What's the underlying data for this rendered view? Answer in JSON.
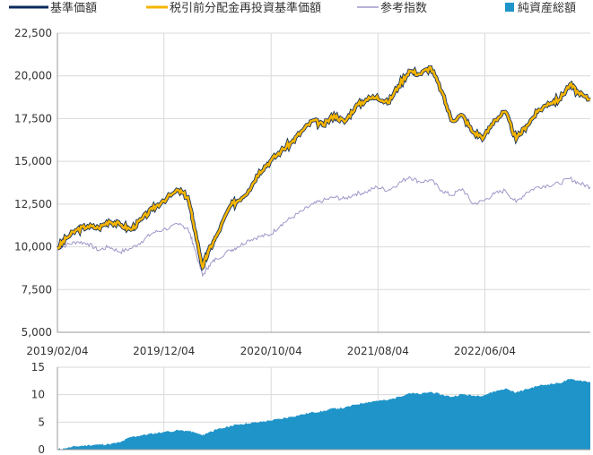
{
  "legend": [
    {
      "label": "基準価額",
      "color": "#0b2a5c",
      "kind": "line"
    },
    {
      "label": "税引前分配金再投資基準価額",
      "color": "#f5b400",
      "kind": "line"
    },
    {
      "label": "参考指数",
      "color": "#9d98c8",
      "kind": "line"
    },
    {
      "label": "純資産総額",
      "color": "#1f94c9",
      "kind": "square"
    }
  ],
  "chart_data": [
    {
      "type": "line",
      "title": "",
      "xlabel": "",
      "ylabel": "",
      "ylim": [
        5000,
        22500
      ],
      "yticks": [
        "22,500",
        "20,000",
        "17,500",
        "15,000",
        "12,500",
        "10,000",
        "7,500",
        "5,000"
      ],
      "yticks_values": [
        22500,
        20000,
        17500,
        15000,
        12500,
        10000,
        7500,
        5000
      ],
      "xticks": [
        "2019/02/04",
        "2019/12/04",
        "2020/10/04",
        "2021/08/04",
        "2022/06/04"
      ],
      "x_start": "2019/02/04",
      "x_end": "2023/03/31",
      "grid": true,
      "series": [
        {
          "name": "基準価額",
          "color": "#0b2a5c",
          "points": [
            [
              "2019/02/04",
              9900
            ],
            [
              "2019/03/01",
              10500
            ],
            [
              "2019/04/01",
              11000
            ],
            [
              "2019/05/01",
              11200
            ],
            [
              "2019/06/01",
              11100
            ],
            [
              "2019/07/01",
              11500
            ],
            [
              "2019/08/01",
              11300
            ],
            [
              "2019/09/01",
              11000
            ],
            [
              "2019/10/01",
              11600
            ],
            [
              "2019/11/01",
              12200
            ],
            [
              "2019/12/01",
              12700
            ],
            [
              "2020/01/15",
              13300
            ],
            [
              "2020/02/10",
              12900
            ],
            [
              "2020/02/25",
              11500
            ],
            [
              "2020/03/23",
              8800
            ],
            [
              "2020/04/10",
              9800
            ],
            [
              "2020/05/01",
              10600
            ],
            [
              "2020/06/10",
              12400
            ],
            [
              "2020/07/01",
              12700
            ],
            [
              "2020/08/01",
              13300
            ],
            [
              "2020/09/01",
              14400
            ],
            [
              "2020/10/01",
              15000
            ],
            [
              "2020/11/01",
              15600
            ],
            [
              "2020/12/01",
              16100
            ],
            [
              "2021/01/01",
              16800
            ],
            [
              "2021/02/01",
              17400
            ],
            [
              "2021/03/01",
              17100
            ],
            [
              "2021/04/01",
              17700
            ],
            [
              "2021/05/01",
              17300
            ],
            [
              "2021/06/01",
              18200
            ],
            [
              "2021/07/01",
              18600
            ],
            [
              "2021/08/01",
              18800
            ],
            [
              "2021/09/01",
              18400
            ],
            [
              "2021/10/01",
              19400
            ],
            [
              "2021/11/01",
              20300
            ],
            [
              "2021/12/01",
              20100
            ],
            [
              "2022/01/01",
              20500
            ],
            [
              "2022/02/01",
              19100
            ],
            [
              "2022/03/01",
              17400
            ],
            [
              "2022/04/01",
              17700
            ],
            [
              "2022/05/01",
              16700
            ],
            [
              "2022/06/01",
              16400
            ],
            [
              "2022/07/01",
              17400
            ],
            [
              "2022/08/01",
              17900
            ],
            [
              "2022/09/01",
              16300
            ],
            [
              "2022/10/01",
              17100
            ],
            [
              "2022/11/01",
              17900
            ],
            [
              "2022/12/01",
              18400
            ],
            [
              "2023/01/01",
              18600
            ],
            [
              "2023/02/01",
              19500
            ],
            [
              "2023/03/01",
              18900
            ],
            [
              "2023/03/31",
              18600
            ]
          ]
        },
        {
          "name": "税引前分配金再投資基準価額",
          "color": "#f5b400",
          "points": [
            [
              "2019/02/04",
              9900
            ],
            [
              "2019/03/01",
              10500
            ],
            [
              "2019/04/01",
              11000
            ],
            [
              "2019/05/01",
              11200
            ],
            [
              "2019/06/01",
              11100
            ],
            [
              "2019/07/01",
              11500
            ],
            [
              "2019/08/01",
              11300
            ],
            [
              "2019/09/01",
              11000
            ],
            [
              "2019/10/01",
              11600
            ],
            [
              "2019/11/01",
              12200
            ],
            [
              "2019/12/01",
              12700
            ],
            [
              "2020/01/15",
              13300
            ],
            [
              "2020/02/10",
              12900
            ],
            [
              "2020/02/25",
              11500
            ],
            [
              "2020/03/23",
              8800
            ],
            [
              "2020/04/10",
              9800
            ],
            [
              "2020/05/01",
              10600
            ],
            [
              "2020/06/10",
              12400
            ],
            [
              "2020/07/01",
              12700
            ],
            [
              "2020/08/01",
              13300
            ],
            [
              "2020/09/01",
              14400
            ],
            [
              "2020/10/01",
              15000
            ],
            [
              "2020/11/01",
              15600
            ],
            [
              "2020/12/01",
              16100
            ],
            [
              "2021/01/01",
              16800
            ],
            [
              "2021/02/01",
              17400
            ],
            [
              "2021/03/01",
              17100
            ],
            [
              "2021/04/01",
              17700
            ],
            [
              "2021/05/01",
              17300
            ],
            [
              "2021/06/01",
              18200
            ],
            [
              "2021/07/01",
              18600
            ],
            [
              "2021/08/01",
              18800
            ],
            [
              "2021/09/01",
              18400
            ],
            [
              "2021/10/01",
              19400
            ],
            [
              "2021/11/01",
              20300
            ],
            [
              "2021/12/01",
              20100
            ],
            [
              "2022/01/01",
              20500
            ],
            [
              "2022/02/01",
              19100
            ],
            [
              "2022/03/01",
              17400
            ],
            [
              "2022/04/01",
              17700
            ],
            [
              "2022/05/01",
              16700
            ],
            [
              "2022/06/01",
              16400
            ],
            [
              "2022/07/01",
              17400
            ],
            [
              "2022/08/01",
              17900
            ],
            [
              "2022/09/01",
              16300
            ],
            [
              "2022/10/01",
              17100
            ],
            [
              "2022/11/01",
              17900
            ],
            [
              "2022/12/01",
              18400
            ],
            [
              "2023/01/01",
              18600
            ],
            [
              "2023/02/01",
              19500
            ],
            [
              "2023/03/01",
              18900
            ],
            [
              "2023/03/31",
              18600
            ]
          ]
        },
        {
          "name": "参考指数",
          "color": "#9d98c8",
          "points": [
            [
              "2019/02/04",
              9900
            ],
            [
              "2019/03/01",
              10100
            ],
            [
              "2019/04/01",
              10300
            ],
            [
              "2019/05/01",
              10200
            ],
            [
              "2019/06/01",
              9800
            ],
            [
              "2019/07/01",
              10000
            ],
            [
              "2019/08/01",
              9700
            ],
            [
              "2019/09/01",
              9900
            ],
            [
              "2019/10/01",
              10300
            ],
            [
              "2019/11/01",
              10800
            ],
            [
              "2019/12/01",
              11000
            ],
            [
              "2020/01/15",
              11300
            ],
            [
              "2020/02/10",
              11100
            ],
            [
              "2020/02/25",
              10200
            ],
            [
              "2020/03/23",
              8300
            ],
            [
              "2020/04/10",
              8900
            ],
            [
              "2020/05/01",
              9300
            ],
            [
              "2020/06/10",
              9800
            ],
            [
              "2020/07/01",
              10000
            ],
            [
              "2020/08/01",
              10400
            ],
            [
              "2020/09/01",
              10600
            ],
            [
              "2020/10/01",
              10700
            ],
            [
              "2020/11/01",
              11300
            ],
            [
              "2020/12/01",
              11700
            ],
            [
              "2021/01/01",
              12100
            ],
            [
              "2021/02/01",
              12500
            ],
            [
              "2021/03/01",
              12700
            ],
            [
              "2021/04/01",
              12900
            ],
            [
              "2021/05/01",
              12800
            ],
            [
              "2021/06/01",
              13100
            ],
            [
              "2021/07/01",
              13200
            ],
            [
              "2021/08/01",
              13500
            ],
            [
              "2021/09/01",
              13300
            ],
            [
              "2021/10/01",
              13700
            ],
            [
              "2021/11/01",
              14100
            ],
            [
              "2021/12/01",
              13800
            ],
            [
              "2022/01/01",
              13900
            ],
            [
              "2022/02/01",
              13300
            ],
            [
              "2022/03/01",
              13000
            ],
            [
              "2022/04/01",
              13400
            ],
            [
              "2022/05/01",
              12500
            ],
            [
              "2022/06/01",
              12700
            ],
            [
              "2022/07/01",
              13100
            ],
            [
              "2022/08/01",
              13300
            ],
            [
              "2022/09/01",
              12600
            ],
            [
              "2022/10/01",
              13200
            ],
            [
              "2022/11/01",
              13500
            ],
            [
              "2022/12/01",
              13600
            ],
            [
              "2023/01/01",
              13700
            ],
            [
              "2023/02/01",
              14000
            ],
            [
              "2023/03/01",
              13700
            ],
            [
              "2023/03/31",
              13500
            ]
          ]
        }
      ]
    },
    {
      "type": "area",
      "title": "",
      "xlabel": "",
      "ylabel": "",
      "ylim": [
        0,
        15
      ],
      "yticks": [
        "15",
        "10",
        "5",
        "0"
      ],
      "yticks_values": [
        15,
        10,
        5,
        0
      ],
      "x_start": "2019/02/04",
      "x_end": "2023/03/31",
      "grid": true,
      "series": [
        {
          "name": "純資産総額",
          "color": "#1f94c9",
          "points": [
            [
              "2019/02/04",
              0.05
            ],
            [
              "2019/03/01",
              0.3
            ],
            [
              "2019/04/01",
              0.6
            ],
            [
              "2019/05/01",
              0.8
            ],
            [
              "2019/06/01",
              0.9
            ],
            [
              "2019/07/01",
              1.0
            ],
            [
              "2019/08/01",
              1.3
            ],
            [
              "2019/09/01",
              2.3
            ],
            [
              "2019/10/01",
              2.6
            ],
            [
              "2019/11/01",
              2.9
            ],
            [
              "2019/12/01",
              3.2
            ],
            [
              "2020/01/15",
              3.5
            ],
            [
              "2020/02/10",
              3.4
            ],
            [
              "2020/02/25",
              3.2
            ],
            [
              "2020/03/23",
              2.6
            ],
            [
              "2020/04/10",
              3.2
            ],
            [
              "2020/05/01",
              3.6
            ],
            [
              "2020/06/10",
              4.3
            ],
            [
              "2020/07/01",
              4.6
            ],
            [
              "2020/08/01",
              4.8
            ],
            [
              "2020/09/01",
              5.0
            ],
            [
              "2020/10/01",
              5.3
            ],
            [
              "2020/11/01",
              5.6
            ],
            [
              "2020/12/01",
              6.0
            ],
            [
              "2021/01/01",
              6.4
            ],
            [
              "2021/02/01",
              6.8
            ],
            [
              "2021/03/01",
              7.0
            ],
            [
              "2021/04/01",
              7.5
            ],
            [
              "2021/05/01",
              7.6
            ],
            [
              "2021/06/01",
              8.2
            ],
            [
              "2021/07/01",
              8.6
            ],
            [
              "2021/08/01",
              8.9
            ],
            [
              "2021/09/01",
              9.0
            ],
            [
              "2021/10/01",
              9.6
            ],
            [
              "2021/11/01",
              10.3
            ],
            [
              "2021/12/01",
              10.1
            ],
            [
              "2022/01/01",
              10.5
            ],
            [
              "2022/02/01",
              10.0
            ],
            [
              "2022/03/01",
              9.6
            ],
            [
              "2022/04/01",
              10.1
            ],
            [
              "2022/05/01",
              9.8
            ],
            [
              "2022/06/01",
              9.9
            ],
            [
              "2022/07/01",
              10.6
            ],
            [
              "2022/08/01",
              11.1
            ],
            [
              "2022/09/01",
              10.4
            ],
            [
              "2022/10/01",
              11.0
            ],
            [
              "2022/11/01",
              11.6
            ],
            [
              "2022/12/01",
              11.9
            ],
            [
              "2023/01/01",
              12.1
            ],
            [
              "2023/02/01",
              12.8
            ],
            [
              "2023/03/01",
              12.6
            ],
            [
              "2023/03/31",
              12.3
            ]
          ]
        }
      ]
    }
  ]
}
